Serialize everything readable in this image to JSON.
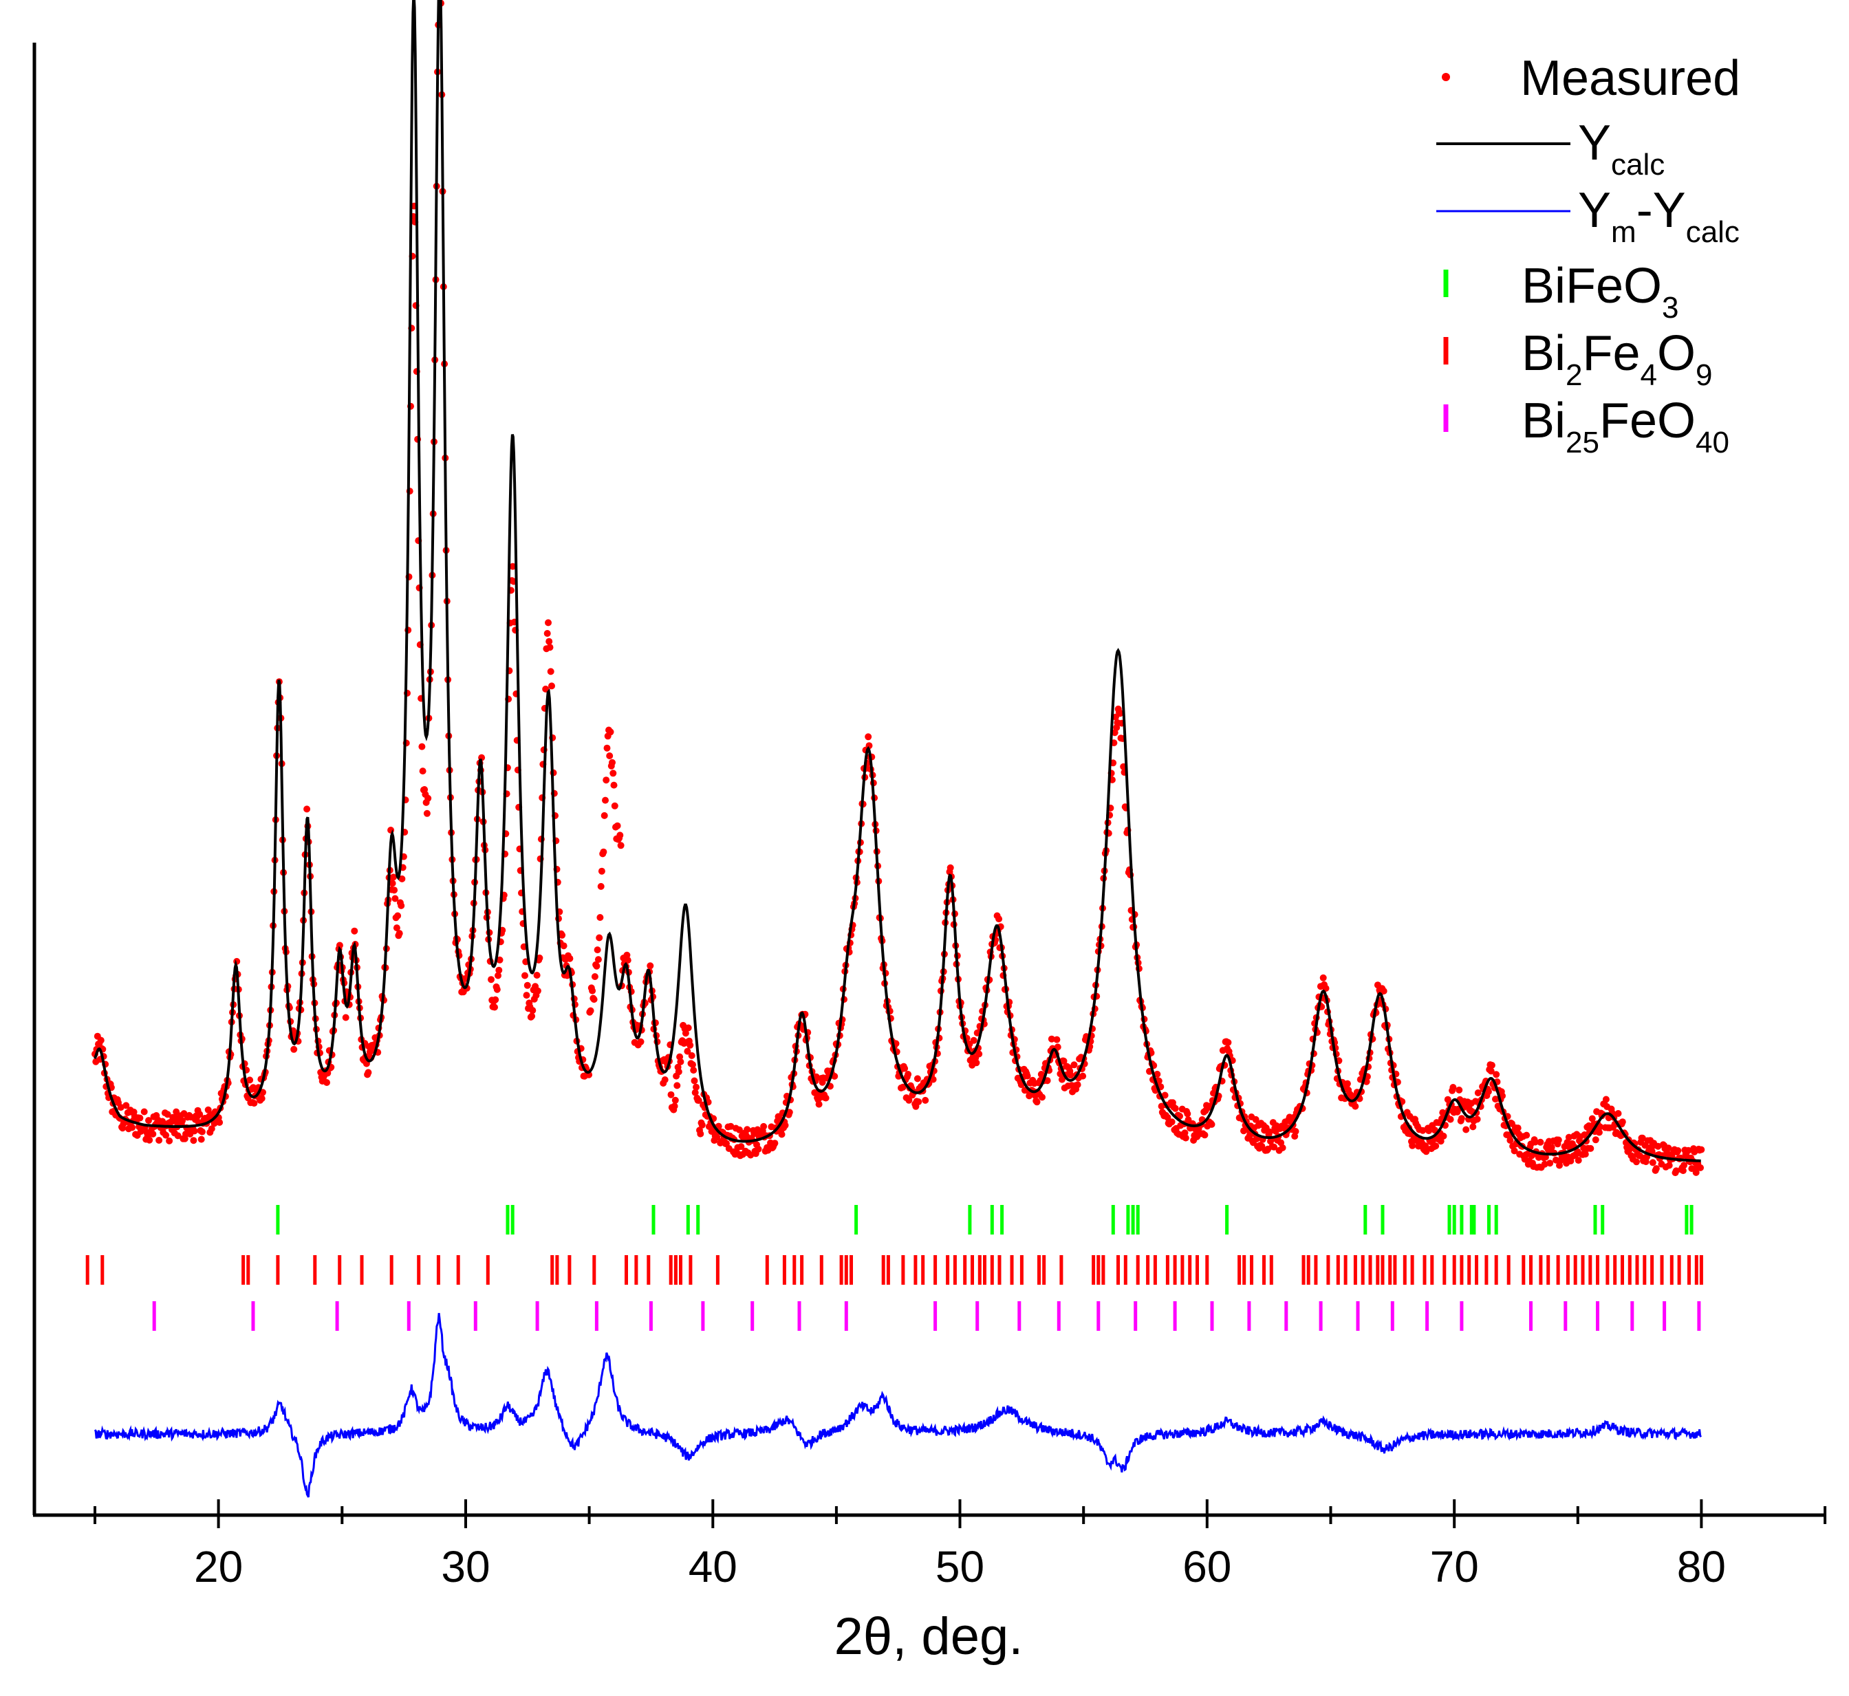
{
  "chart_data": {
    "type": "line",
    "title": "",
    "xlabel": "2θ, deg.",
    "ylabel": "",
    "xlim": [
      12.5,
      85
    ],
    "ylim": [
      0,
      1
    ],
    "grid": false,
    "legend_position": "top-right",
    "x_ticks": [
      20,
      30,
      40,
      50,
      60,
      70,
      80
    ],
    "x_minor_ticks": [
      15,
      25,
      35,
      45,
      55,
      65,
      75,
      85
    ],
    "colors": {
      "measured": "#ff0000",
      "calc": "#000000",
      "diff": "#0000ff",
      "bifeo3": "#00ff00",
      "bi2fe4o9": "#ff0000",
      "bi25feo40": "#ff00ff"
    },
    "legend": [
      {
        "key": "measured",
        "symbol": "dot",
        "color": "#ff0000",
        "label": "Measured",
        "sub": [],
        "suffix": ""
      },
      {
        "key": "calc",
        "symbol": "line",
        "color": "#000000",
        "label": "Y",
        "sub": [
          "calc"
        ],
        "suffix": ""
      },
      {
        "key": "diff",
        "symbol": "line",
        "color": "#0000ff",
        "label": "Y",
        "sub": [
          "m",
          "calc"
        ],
        "suffix": "",
        "parts": [
          "Y",
          "m",
          "-Y",
          "calc"
        ]
      },
      {
        "key": "bifeo3",
        "symbol": "tick",
        "color": "#00ff00",
        "label": "BiFeO",
        "parts": [
          "BiFeO",
          "3"
        ]
      },
      {
        "key": "bi2fe4o9",
        "symbol": "tick",
        "color": "#ff0000",
        "label": "Bi",
        "parts": [
          "Bi",
          "2",
          "Fe",
          "4",
          "O",
          "9"
        ]
      },
      {
        "key": "bi25feo40",
        "symbol": "tick",
        "color": "#ff00ff",
        "label": "Bi",
        "parts": [
          "Bi",
          "25",
          "FeO",
          "40"
        ]
      }
    ],
    "calc_peaks": [
      {
        "pos": 15.2,
        "h": 0.05,
        "w": 0.3
      },
      {
        "pos": 20.7,
        "h": 0.16,
        "w": 0.22
      },
      {
        "pos": 22.45,
        "h": 0.44,
        "w": 0.2
      },
      {
        "pos": 23.6,
        "h": 0.29,
        "w": 0.2
      },
      {
        "pos": 24.9,
        "h": 0.14,
        "w": 0.22
      },
      {
        "pos": 25.5,
        "h": 0.14,
        "w": 0.22
      },
      {
        "pos": 27.0,
        "h": 0.2,
        "w": 0.25
      },
      {
        "pos": 27.9,
        "h": 1.06,
        "w": 0.23
      },
      {
        "pos": 28.95,
        "h": 1.1,
        "w": 0.25
      },
      {
        "pos": 30.6,
        "h": 0.3,
        "w": 0.25
      },
      {
        "pos": 31.9,
        "h": 0.66,
        "w": 0.28
      },
      {
        "pos": 33.35,
        "h": 0.4,
        "w": 0.3
      },
      {
        "pos": 34.2,
        "h": 0.1,
        "w": 0.3
      },
      {
        "pos": 35.8,
        "h": 0.17,
        "w": 0.35
      },
      {
        "pos": 36.5,
        "h": 0.12,
        "w": 0.3
      },
      {
        "pos": 37.4,
        "h": 0.14,
        "w": 0.3
      },
      {
        "pos": 38.9,
        "h": 0.24,
        "w": 0.4
      },
      {
        "pos": 43.6,
        "h": 0.12,
        "w": 0.35
      },
      {
        "pos": 45.5,
        "h": 0.08,
        "w": 0.4
      },
      {
        "pos": 46.3,
        "h": 0.38,
        "w": 0.55
      },
      {
        "pos": 49.6,
        "h": 0.24,
        "w": 0.35
      },
      {
        "pos": 51.5,
        "h": 0.2,
        "w": 0.55
      },
      {
        "pos": 53.8,
        "h": 0.06,
        "w": 0.4
      },
      {
        "pos": 56.4,
        "h": 0.5,
        "w": 0.6
      },
      {
        "pos": 60.8,
        "h": 0.09,
        "w": 0.45
      },
      {
        "pos": 64.7,
        "h": 0.16,
        "w": 0.55
      },
      {
        "pos": 67.0,
        "h": 0.16,
        "w": 0.55
      },
      {
        "pos": 70.0,
        "h": 0.05,
        "w": 0.5
      },
      {
        "pos": 71.5,
        "h": 0.08,
        "w": 0.6
      },
      {
        "pos": 76.2,
        "h": 0.05,
        "w": 0.8
      }
    ],
    "calc_background": [
      [
        15.0,
        0.08
      ],
      [
        16.0,
        0.05
      ],
      [
        17.0,
        0.045
      ],
      [
        19.5,
        0.04
      ],
      [
        21.0,
        0.04
      ],
      [
        30.0,
        0.05
      ],
      [
        40.0,
        0.01
      ],
      [
        50.0,
        0.03
      ],
      [
        60.0,
        0.015
      ],
      [
        70.0,
        0.005
      ],
      [
        80.0,
        0.01
      ]
    ],
    "measured_scale": [
      {
        "range": [
          27.0,
          28.5
        ],
        "factor": 0.82
      },
      {
        "range": [
          31.0,
          33.0
        ],
        "factor": 0.8
      },
      {
        "range": [
          33.0,
          34.0
        ],
        "factor": 1.15
      },
      {
        "range": [
          35.0,
          36.3
        ],
        "factor": 1.9
      },
      {
        "range": [
          38.3,
          39.6
        ],
        "factor": 0.5
      },
      {
        "range": [
          56.0,
          57.0
        ],
        "factor": 0.88
      }
    ],
    "reflections": {
      "bifeo3": [
        22.4,
        31.7,
        31.9,
        37.6,
        39.0,
        39.4,
        45.8,
        50.4,
        51.3,
        51.7,
        56.2,
        56.8,
        57.0,
        57.2,
        60.8,
        66.4,
        67.1,
        69.8,
        70.0,
        70.3,
        70.7,
        70.8,
        71.4,
        71.7,
        75.7,
        76.0,
        79.4,
        79.6
      ],
      "bi2fe4o9": [
        14.7,
        15.3,
        21.0,
        21.2,
        22.4,
        23.9,
        24.9,
        25.8,
        27.0,
        28.1,
        28.9,
        29.7,
        30.9,
        33.5,
        33.7,
        34.2,
        35.2,
        36.5,
        36.9,
        37.4,
        38.3,
        38.5,
        38.7,
        39.1,
        40.2,
        42.2,
        42.9,
        43.3,
        43.6,
        44.4,
        45.2,
        45.4,
        45.6,
        46.9,
        47.1,
        47.7,
        48.2,
        48.5,
        49.0,
        49.5,
        49.8,
        50.2,
        50.5,
        50.8,
        51.0,
        51.3,
        51.6,
        52.1,
        52.5,
        53.2,
        53.4,
        54.1,
        55.4,
        55.6,
        55.8,
        56.4,
        56.7,
        57.2,
        57.6,
        57.9,
        58.4,
        58.7,
        59.0,
        59.3,
        59.6,
        60.0,
        61.3,
        61.5,
        61.8,
        62.3,
        62.6,
        63.9,
        64.1,
        64.4,
        64.9,
        65.3,
        65.6,
        66.0,
        66.3,
        66.6,
        66.9,
        67.1,
        67.4,
        67.6,
        68.0,
        68.3,
        68.8,
        69.1,
        69.6,
        70.0,
        70.3,
        70.6,
        70.9,
        71.3,
        71.7,
        72.2,
        72.8,
        73.1,
        73.5,
        73.8,
        74.2,
        74.6,
        74.9,
        75.2,
        75.5,
        75.8,
        76.2,
        76.5,
        76.8,
        77.1,
        77.4,
        77.7,
        78.0,
        78.4,
        78.8,
        79.1,
        79.5,
        79.8,
        80.0
      ],
      "bi25feo40": [
        17.4,
        21.4,
        24.8,
        27.7,
        30.4,
        32.9,
        35.3,
        37.5,
        39.6,
        41.6,
        43.5,
        45.4,
        49.0,
        50.7,
        52.4,
        54.0,
        55.6,
        57.1,
        58.7,
        60.2,
        61.7,
        63.2,
        64.6,
        66.1,
        67.5,
        68.9,
        70.3,
        73.1,
        74.5,
        75.8,
        77.2,
        78.5,
        79.9
      ]
    },
    "diff_features": [
      {
        "pos": 22.5,
        "amp": 0.04,
        "w": 0.3
      },
      {
        "pos": 23.6,
        "amp": -0.08,
        "w": 0.25
      },
      {
        "pos": 27.8,
        "amp": 0.05,
        "w": 0.25
      },
      {
        "pos": 28.9,
        "amp": 0.13,
        "w": 0.22
      },
      {
        "pos": 29.3,
        "amp": 0.05,
        "w": 0.25
      },
      {
        "pos": 31.7,
        "amp": 0.03,
        "w": 0.3
      },
      {
        "pos": 33.3,
        "amp": 0.08,
        "w": 0.35
      },
      {
        "pos": 34.4,
        "amp": -0.03,
        "w": 0.4
      },
      {
        "pos": 35.7,
        "amp": 0.1,
        "w": 0.35
      },
      {
        "pos": 39.0,
        "amp": -0.03,
        "w": 0.5
      },
      {
        "pos": 43.0,
        "amp": 0.02,
        "w": 0.5
      },
      {
        "pos": 43.8,
        "amp": -0.02,
        "w": 0.4
      },
      {
        "pos": 46.0,
        "amp": 0.03,
        "w": 0.5
      },
      {
        "pos": 46.9,
        "amp": 0.04,
        "w": 0.3
      },
      {
        "pos": 51.9,
        "amp": 0.03,
        "w": 0.8
      },
      {
        "pos": 56.0,
        "amp": -0.03,
        "w": 0.3
      },
      {
        "pos": 56.6,
        "amp": -0.04,
        "w": 0.3
      },
      {
        "pos": 60.8,
        "amp": 0.015,
        "w": 0.5
      },
      {
        "pos": 64.7,
        "amp": 0.015,
        "w": 0.5
      },
      {
        "pos": 67.2,
        "amp": -0.02,
        "w": 0.6
      },
      {
        "pos": 76.2,
        "amp": 0.01,
        "w": 0.5
      }
    ]
  }
}
